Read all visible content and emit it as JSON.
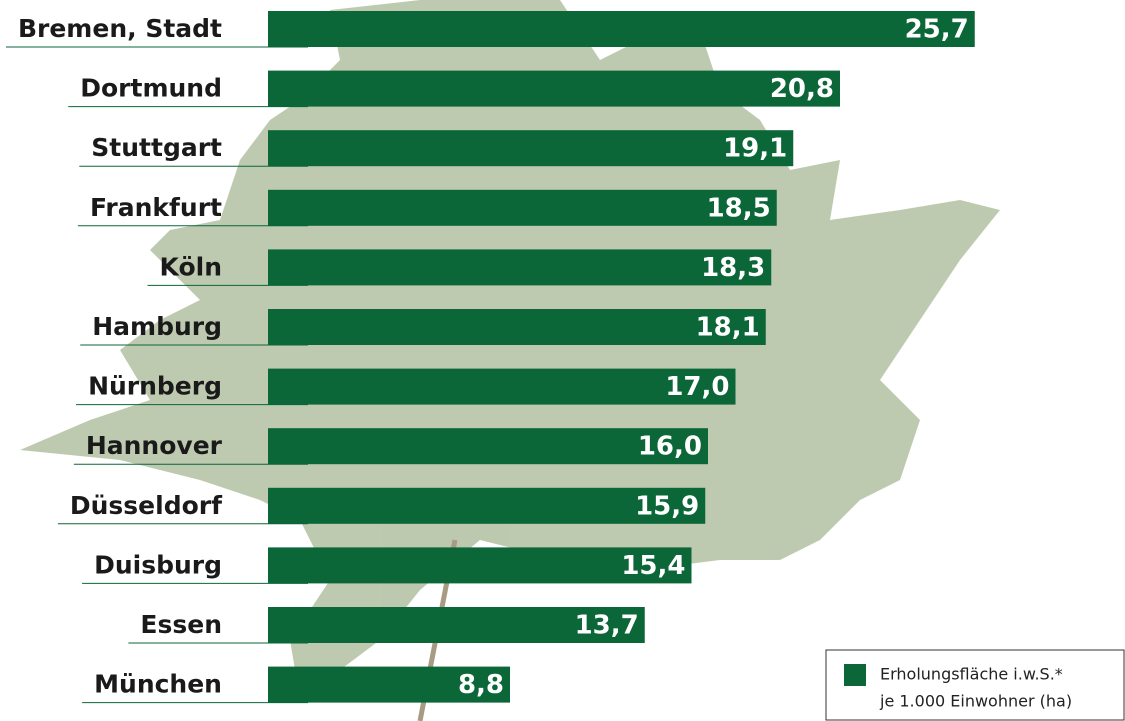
{
  "chart_data": {
    "type": "bar",
    "orientation": "horizontal",
    "categories": [
      "Bremen, Stadt",
      "Dortmund",
      "Stuttgart",
      "Frankfurt",
      "Köln",
      "Hamburg",
      "Nürnberg",
      "Hannover",
      "Düsseldorf",
      "Duisburg",
      "Essen",
      "München"
    ],
    "series": [
      {
        "name": "Erholungsfläche i.w.S.*",
        "color": "#0b6638",
        "values": [
          25.7,
          20.8,
          19.1,
          18.5,
          18.3,
          18.1,
          17.0,
          16.0,
          15.9,
          15.4,
          13.7,
          8.8
        ],
        "value_labels": [
          "25,7",
          "20,8",
          "19,1",
          "18,5",
          "18,3",
          "18,1",
          "17,0",
          "16,0",
          "15,9",
          "15,4",
          "13,7",
          "8,8"
        ]
      }
    ],
    "legend_subtitle": "je 1.000 Einwohner (ha)",
    "legend_position": "bottom-right"
  }
}
